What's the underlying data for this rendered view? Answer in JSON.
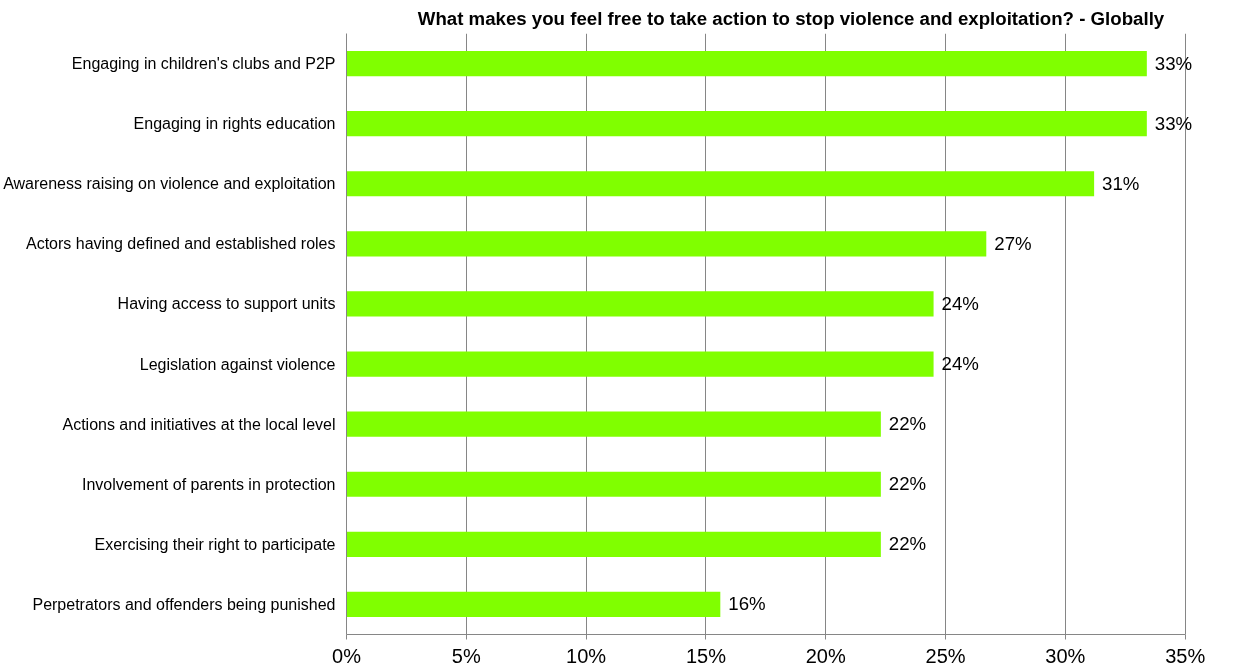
{
  "chart_data": {
    "type": "bar",
    "orientation": "horizontal",
    "title": "What makes you feel free to take action to stop violence and exploitation? - Globally",
    "categories": [
      "Engaging in children's clubs and P2P",
      "Engaging in rights education",
      "Awareness raising on violence and exploitation",
      "Actors having defined and established roles",
      "Having access to support units",
      "Legislation against violence",
      "Actions and initiatives at the local level",
      "Involvement of parents in protection",
      "Exercising their right to participate",
      "Perpetrators and offenders being punished"
    ],
    "values": [
      33.4,
      33.4,
      31.2,
      26.7,
      24.5,
      24.5,
      22.3,
      22.3,
      22.3,
      15.6
    ],
    "value_labels": [
      "33%",
      "33%",
      "31%",
      "27%",
      "24%",
      "24%",
      "22%",
      "22%",
      "22%",
      "16%"
    ],
    "color": "#80ff00",
    "xlim": [
      0,
      35
    ],
    "xticks": [
      {
        "value": 0,
        "label": "0%"
      },
      {
        "value": 5,
        "label": "5%"
      },
      {
        "value": 10,
        "label": "10%"
      },
      {
        "value": 15,
        "label": "15%"
      },
      {
        "value": 20,
        "label": "20%"
      },
      {
        "value": 25,
        "label": "25%"
      },
      {
        "value": 30,
        "label": "30%"
      },
      {
        "value": 35,
        "label": "35%"
      }
    ],
    "grid": "x"
  }
}
